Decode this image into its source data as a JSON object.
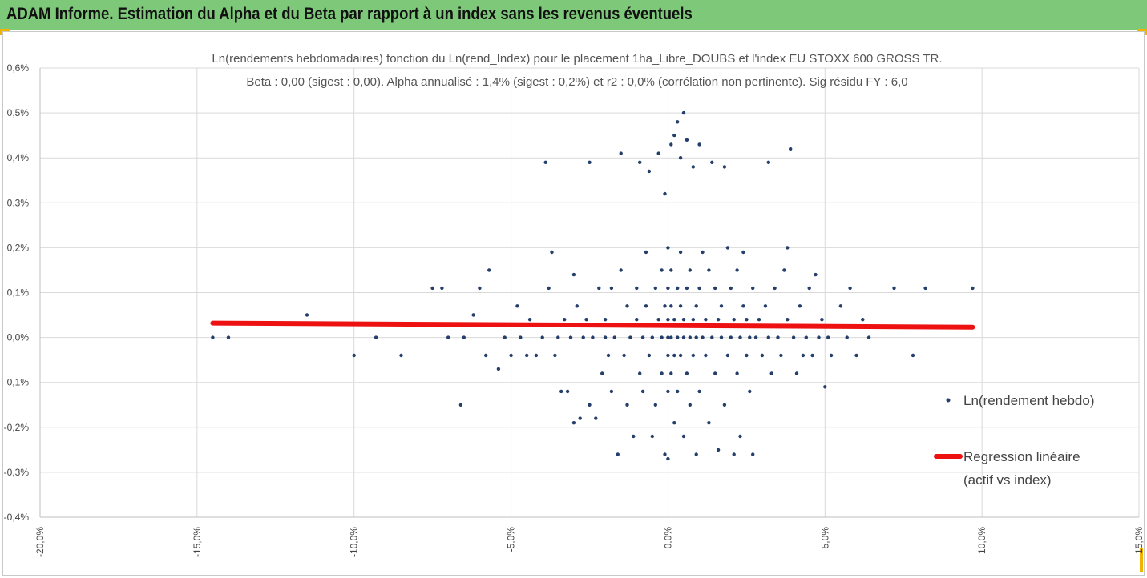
{
  "header": {
    "title": "ADAM Informe. Estimation du Alpha et du Beta par rapport à un index sans les revenus éventuels"
  },
  "colors": {
    "header_bg": "#7ec87a",
    "points": "#243f6b",
    "regression": "#ee1111",
    "grid": "#d9d9d9"
  },
  "chart_data": {
    "type": "scatter",
    "title_line1": "Ln(rendements hebdomadaires) fonction du Ln(rend_Index) pour le placement 1ha_Libre_DOUBS et l'index EU STOXX 600 GROSS TR.",
    "title_line2": "Beta : 0,00 (sigest : 0,00). Alpha annualisé : 1,4% (sigest : 0,2%) et r2 : 0,0% (corrélation non pertinente). Sig résidu FY : 6,0",
    "xlim": [
      -0.2,
      0.15
    ],
    "ylim": [
      -0.004,
      0.006
    ],
    "x_ticks": [
      "-20,0%",
      "-15,0%",
      "-10,0%",
      "-5,0%",
      "0,0%",
      "5,0%",
      "10,0%",
      "15,0%"
    ],
    "y_ticks": [
      "0,6%",
      "0,5%",
      "0,4%",
      "0,3%",
      "0,2%",
      "0,1%",
      "0,0%",
      "-0,1%",
      "-0,2%",
      "-0,3%",
      "-0,4%"
    ],
    "grid": true,
    "legend_position": "right",
    "series": [
      {
        "name": "Ln(rendement hebdo)",
        "kind": "scatter",
        "points": [
          [
            -0.145,
            0.0
          ],
          [
            -0.14,
            0.0
          ],
          [
            -0.115,
            0.0005
          ],
          [
            -0.1,
            -0.0004
          ],
          [
            -0.093,
            0.0
          ],
          [
            -0.085,
            0.0003
          ],
          [
            -0.085,
            -0.0004
          ],
          [
            -0.075,
            0.0011
          ],
          [
            -0.072,
            0.0011
          ],
          [
            -0.07,
            0.0
          ],
          [
            -0.066,
            -0.0015
          ],
          [
            -0.065,
            0.0
          ],
          [
            -0.062,
            0.0005
          ],
          [
            -0.06,
            0.0011
          ],
          [
            -0.058,
            -0.0004
          ],
          [
            -0.057,
            0.0015
          ],
          [
            -0.055,
            0.0003
          ],
          [
            -0.054,
            -0.0007
          ],
          [
            -0.052,
            0.0
          ],
          [
            -0.05,
            -0.0004
          ],
          [
            -0.048,
            0.0007
          ],
          [
            -0.047,
            0.0
          ],
          [
            -0.045,
            -0.0004
          ],
          [
            -0.044,
            0.0004
          ],
          [
            -0.042,
            -0.0004
          ],
          [
            -0.04,
            0.0
          ],
          [
            -0.039,
            0.0039
          ],
          [
            -0.038,
            0.0011
          ],
          [
            -0.037,
            0.0019
          ],
          [
            -0.036,
            -0.0004
          ],
          [
            -0.035,
            0.0
          ],
          [
            -0.034,
            -0.0012
          ],
          [
            -0.033,
            0.0004
          ],
          [
            -0.032,
            -0.0012
          ],
          [
            -0.031,
            0.0
          ],
          [
            -0.03,
            0.0014
          ],
          [
            -0.03,
            -0.0019
          ],
          [
            -0.029,
            0.0007
          ],
          [
            -0.028,
            -0.0018
          ],
          [
            -0.027,
            0.0
          ],
          [
            -0.026,
            0.0004
          ],
          [
            -0.025,
            -0.0015
          ],
          [
            -0.025,
            0.0039
          ],
          [
            -0.024,
            0.0
          ],
          [
            -0.023,
            -0.0018
          ],
          [
            -0.022,
            0.0011
          ],
          [
            -0.021,
            -0.0008
          ],
          [
            -0.02,
            0.0
          ],
          [
            -0.02,
            0.0004
          ],
          [
            -0.019,
            -0.0004
          ],
          [
            -0.018,
            -0.0012
          ],
          [
            -0.018,
            0.0011
          ],
          [
            -0.017,
            0.0
          ],
          [
            -0.016,
            -0.0026
          ],
          [
            -0.015,
            0.0041
          ],
          [
            -0.015,
            0.0015
          ],
          [
            -0.014,
            -0.0004
          ],
          [
            -0.013,
            0.0007
          ],
          [
            -0.013,
            -0.0015
          ],
          [
            -0.012,
            0.0
          ],
          [
            -0.011,
            -0.0022
          ],
          [
            -0.01,
            0.0004
          ],
          [
            -0.01,
            0.0011
          ],
          [
            -0.009,
            -0.0008
          ],
          [
            -0.009,
            0.0039
          ],
          [
            -0.008,
            0.0
          ],
          [
            -0.008,
            -0.0012
          ],
          [
            -0.007,
            0.0007
          ],
          [
            -0.007,
            0.0019
          ],
          [
            -0.006,
            -0.0004
          ],
          [
            -0.006,
            0.0037
          ],
          [
            -0.005,
            0.0
          ],
          [
            -0.005,
            -0.0022
          ],
          [
            -0.004,
            0.0011
          ],
          [
            -0.004,
            -0.0015
          ],
          [
            -0.003,
            0.0004
          ],
          [
            -0.003,
            0.0041
          ],
          [
            -0.002,
            0.0
          ],
          [
            -0.002,
            -0.0008
          ],
          [
            -0.002,
            0.0015
          ],
          [
            -0.001,
            0.0007
          ],
          [
            -0.001,
            -0.0026
          ],
          [
            -0.001,
            0.0032
          ],
          [
            0.0,
            0.0
          ],
          [
            0.0,
            0.0004
          ],
          [
            0.0,
            -0.0004
          ],
          [
            0.0,
            0.0011
          ],
          [
            0.0,
            -0.0012
          ],
          [
            0.0,
            0.002
          ],
          [
            0.0,
            -0.0027
          ],
          [
            0.001,
            0.0007
          ],
          [
            0.001,
            -0.0008
          ],
          [
            0.001,
            0.0043
          ],
          [
            0.001,
            0.0
          ],
          [
            0.001,
            0.0015
          ],
          [
            0.002,
            -0.0004
          ],
          [
            0.002,
            0.0004
          ],
          [
            0.002,
            -0.0019
          ],
          [
            0.002,
            0.0045
          ],
          [
            0.003,
            0.0
          ],
          [
            0.003,
            0.0011
          ],
          [
            0.003,
            -0.0012
          ],
          [
            0.003,
            0.0048
          ],
          [
            0.004,
            0.0007
          ],
          [
            0.004,
            -0.0004
          ],
          [
            0.004,
            0.0019
          ],
          [
            0.004,
            0.004
          ],
          [
            0.005,
            0.0
          ],
          [
            0.005,
            -0.0022
          ],
          [
            0.005,
            0.0004
          ],
          [
            0.005,
            0.005
          ],
          [
            0.006,
            -0.0008
          ],
          [
            0.006,
            0.0011
          ],
          [
            0.006,
            0.0044
          ],
          [
            0.007,
            0.0
          ],
          [
            0.007,
            -0.0015
          ],
          [
            0.007,
            0.0015
          ],
          [
            0.008,
            0.0004
          ],
          [
            0.008,
            -0.0004
          ],
          [
            0.008,
            0.0038
          ],
          [
            0.009,
            0.0
          ],
          [
            0.009,
            -0.0026
          ],
          [
            0.009,
            0.0007
          ],
          [
            0.01,
            0.0011
          ],
          [
            0.01,
            -0.0012
          ],
          [
            0.01,
            0.0043
          ],
          [
            0.011,
            0.0
          ],
          [
            0.011,
            0.0019
          ],
          [
            0.012,
            -0.0004
          ],
          [
            0.012,
            0.0004
          ],
          [
            0.013,
            -0.0019
          ],
          [
            0.013,
            0.0015
          ],
          [
            0.014,
            0.0
          ],
          [
            0.014,
            0.0039
          ],
          [
            0.015,
            -0.0008
          ],
          [
            0.015,
            0.0011
          ],
          [
            0.016,
            -0.0025
          ],
          [
            0.016,
            0.0004
          ],
          [
            0.017,
            0.0
          ],
          [
            0.017,
            0.0007
          ],
          [
            0.018,
            -0.0015
          ],
          [
            0.018,
            0.0038
          ],
          [
            0.019,
            -0.0004
          ],
          [
            0.019,
            0.002
          ],
          [
            0.02,
            0.0
          ],
          [
            0.02,
            0.0011
          ],
          [
            0.021,
            -0.0026
          ],
          [
            0.021,
            0.0004
          ],
          [
            0.022,
            -0.0008
          ],
          [
            0.022,
            0.0015
          ],
          [
            0.023,
            0.0
          ],
          [
            0.023,
            -0.0022
          ],
          [
            0.024,
            0.0007
          ],
          [
            0.024,
            0.0019
          ],
          [
            0.025,
            -0.0004
          ],
          [
            0.025,
            0.0004
          ],
          [
            0.026,
            0.0
          ],
          [
            0.026,
            -0.0012
          ],
          [
            0.027,
            0.0011
          ],
          [
            0.027,
            -0.0026
          ],
          [
            0.028,
            0.0
          ],
          [
            0.029,
            0.0004
          ],
          [
            0.03,
            -0.0004
          ],
          [
            0.031,
            0.0007
          ],
          [
            0.032,
            0.0
          ],
          [
            0.032,
            0.0039
          ],
          [
            0.033,
            -0.0008
          ],
          [
            0.034,
            0.0011
          ],
          [
            0.035,
            0.0
          ],
          [
            0.036,
            -0.0004
          ],
          [
            0.037,
            0.0015
          ],
          [
            0.038,
            0.002
          ],
          [
            0.038,
            0.0004
          ],
          [
            0.039,
            0.0042
          ],
          [
            0.04,
            0.0
          ],
          [
            0.041,
            -0.0008
          ],
          [
            0.042,
            0.0007
          ],
          [
            0.043,
            -0.0004
          ],
          [
            0.044,
            0.0
          ],
          [
            0.045,
            0.0011
          ],
          [
            0.046,
            -0.0004
          ],
          [
            0.047,
            0.0014
          ],
          [
            0.048,
            0.0
          ],
          [
            0.049,
            0.0004
          ],
          [
            0.05,
            -0.0011
          ],
          [
            0.051,
            0.0
          ],
          [
            0.052,
            -0.0004
          ],
          [
            0.055,
            0.0007
          ],
          [
            0.057,
            0.0
          ],
          [
            0.058,
            0.0011
          ],
          [
            0.06,
            -0.0004
          ],
          [
            0.062,
            0.0004
          ],
          [
            0.064,
            0.0
          ],
          [
            0.072,
            0.0011
          ],
          [
            0.078,
            -0.0004
          ],
          [
            0.082,
            0.0011
          ],
          [
            0.097,
            0.0011
          ]
        ]
      },
      {
        "name": "Regression linéaire (actif vs index)",
        "legend_lines": [
          "Regression linéaire",
          "(actif vs index)"
        ],
        "kind": "line",
        "points": [
          [
            -0.145,
            0.00032
          ],
          [
            0.097,
            0.00023
          ]
        ]
      }
    ]
  }
}
